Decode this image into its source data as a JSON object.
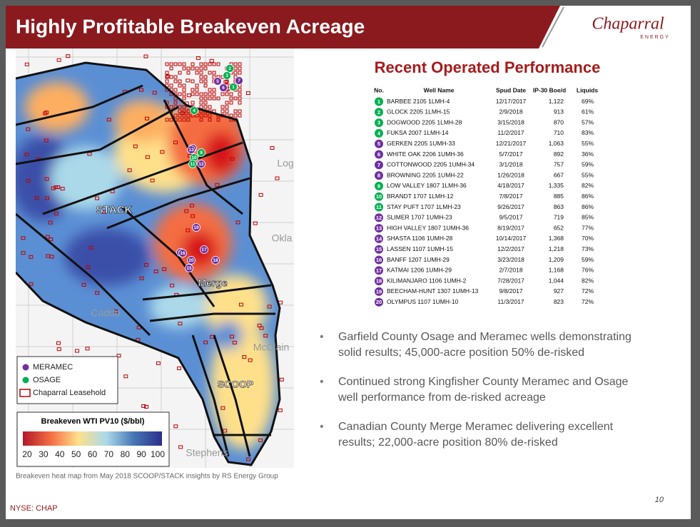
{
  "header": {
    "title": "Highly Profitable Breakeven Acreage",
    "logo": "Chaparral",
    "logo_sub": "ENERGY"
  },
  "map": {
    "labels": [
      "STACK",
      "Merge",
      "SCOOP",
      "Caddo",
      "Stephens",
      "Log",
      "Okla",
      "McClain"
    ],
    "legend": [
      {
        "label": "MERAMEC",
        "color": "#7030a0"
      },
      {
        "label": "OSAGE",
        "color": "#00b050"
      },
      {
        "label": "Chaparral Leasehold",
        "color": "#c00000"
      }
    ],
    "colorbar": {
      "title": "Breakeven WTI PV10 ($/bbl)",
      "ticks": [
        20,
        30,
        40,
        50,
        60,
        70,
        80,
        90,
        100
      ]
    },
    "caption": "Breakeven heat map from May 2018 SCOOP/STACK insights by RS Energy Group"
  },
  "table": {
    "title": "Recent Operated Performance",
    "columns": [
      "No.",
      "Well Name",
      "Spud Date",
      "IP-30 Boe/d",
      "Liquids"
    ],
    "rows": [
      {
        "no": "1",
        "formation": "OSAGE",
        "well": "BARBEE 2105 1LMH-4",
        "spud": "12/17/2017",
        "ip30": "1,122",
        "liquids": "69%"
      },
      {
        "no": "2",
        "formation": "OSAGE",
        "well": "GLOCK 2205 1LMH-15",
        "spud": "2/9/2018",
        "ip30": "913",
        "liquids": "61%"
      },
      {
        "no": "3",
        "formation": "OSAGE",
        "well": "DOGWOOD 2205 1LMH-28",
        "spud": "3/15/2018",
        "ip30": "870",
        "liquids": "57%"
      },
      {
        "no": "4",
        "formation": "OSAGE",
        "well": "FUKSA 2007 1LMH-14",
        "spud": "11/2/2017",
        "ip30": "710",
        "liquids": "83%"
      },
      {
        "no": "5",
        "formation": "MERAMEC",
        "well": "GERKEN 2205 1UMH-33",
        "spud": "12/21/2017",
        "ip30": "1,063",
        "liquids": "55%"
      },
      {
        "no": "6",
        "formation": "MERAMEC",
        "well": "WHITE OAK 2206 1UMH-36",
        "spud": "5/7/2017",
        "ip30": "892",
        "liquids": "36%"
      },
      {
        "no": "7",
        "formation": "MERAMEC",
        "well": "COTTONWOOD 2205 1UMH-34",
        "spud": "3/1/2018",
        "ip30": "757",
        "liquids": "59%"
      },
      {
        "no": "8",
        "formation": "MERAMEC",
        "well": "BROWNING 2205 1UMH-22",
        "spud": "1/26/2018",
        "ip30": "667",
        "liquids": "55%"
      },
      {
        "no": "9",
        "formation": "OSAGE",
        "well": "LOW VALLEY 1807 1LMH-36",
        "spud": "4/18/2017",
        "ip30": "1,335",
        "liquids": "82%"
      },
      {
        "no": "10",
        "formation": "OSAGE",
        "well": "BRANDT 1707 1LMH-12",
        "spud": "7/8/2017",
        "ip30": "885",
        "liquids": "86%"
      },
      {
        "no": "11",
        "formation": "OSAGE",
        "well": "STAY PUFT 1707 1LMH-23",
        "spud": "9/26/2017",
        "ip30": "863",
        "liquids": "86%"
      },
      {
        "no": "12",
        "formation": "MERAMEC",
        "well": "SLIMER 1707 1UMH-23",
        "spud": "9/5/2017",
        "ip30": "719",
        "liquids": "85%"
      },
      {
        "no": "13",
        "formation": "MERAMEC",
        "well": "HIGH VALLEY 1807 1UMH-36",
        "spud": "8/19/2017",
        "ip30": "652",
        "liquids": "77%"
      },
      {
        "no": "14",
        "formation": "MERAMEC",
        "well": "SHASTA 1106 1UMH-28",
        "spud": "10/14/2017",
        "ip30": "1,368",
        "liquids": "70%"
      },
      {
        "no": "15",
        "formation": "MERAMEC",
        "well": "LASSEN 1107 1UMH-15",
        "spud": "12/2/2017",
        "ip30": "1,218",
        "liquids": "73%"
      },
      {
        "no": "16",
        "formation": "MERAMEC",
        "well": "BANFF 1207 1UMH-29",
        "spud": "3/23/2018",
        "ip30": "1,209",
        "liquids": "59%"
      },
      {
        "no": "17",
        "formation": "MERAMEC",
        "well": "KATMAI 1206 1UMH-29",
        "spud": "2/7/2018",
        "ip30": "1,168",
        "liquids": "76%"
      },
      {
        "no": "18",
        "formation": "MERAMEC",
        "well": "KILIMANJARO 1106 1UMH-2",
        "spud": "7/28/2017",
        "ip30": "1,044",
        "liquids": "82%"
      },
      {
        "no": "19",
        "formation": "MERAMEC",
        "well": "BEECHAM-HUNT 1307 1UMH-13",
        "spud": "9/8/2017",
        "ip30": "927",
        "liquids": "72%"
      },
      {
        "no": "20",
        "formation": "MERAMEC",
        "well": "OLYMPUS 1107 1UMH-10",
        "spud": "11/3/2017",
        "ip30": "823",
        "liquids": "72%"
      }
    ]
  },
  "bullets": [
    "Garfield County Osage and Meramec wells demonstrating solid results; 45,000-acre position 50% de-risked",
    "Continued strong Kingfisher County Meramec and Osage well performance from de-risked acreage",
    "Canadian County Merge Meramec delivering excellent results; 22,000-acre position 80% de-risked"
  ],
  "page_number": "10",
  "footer": "NYSE: CHAP"
}
